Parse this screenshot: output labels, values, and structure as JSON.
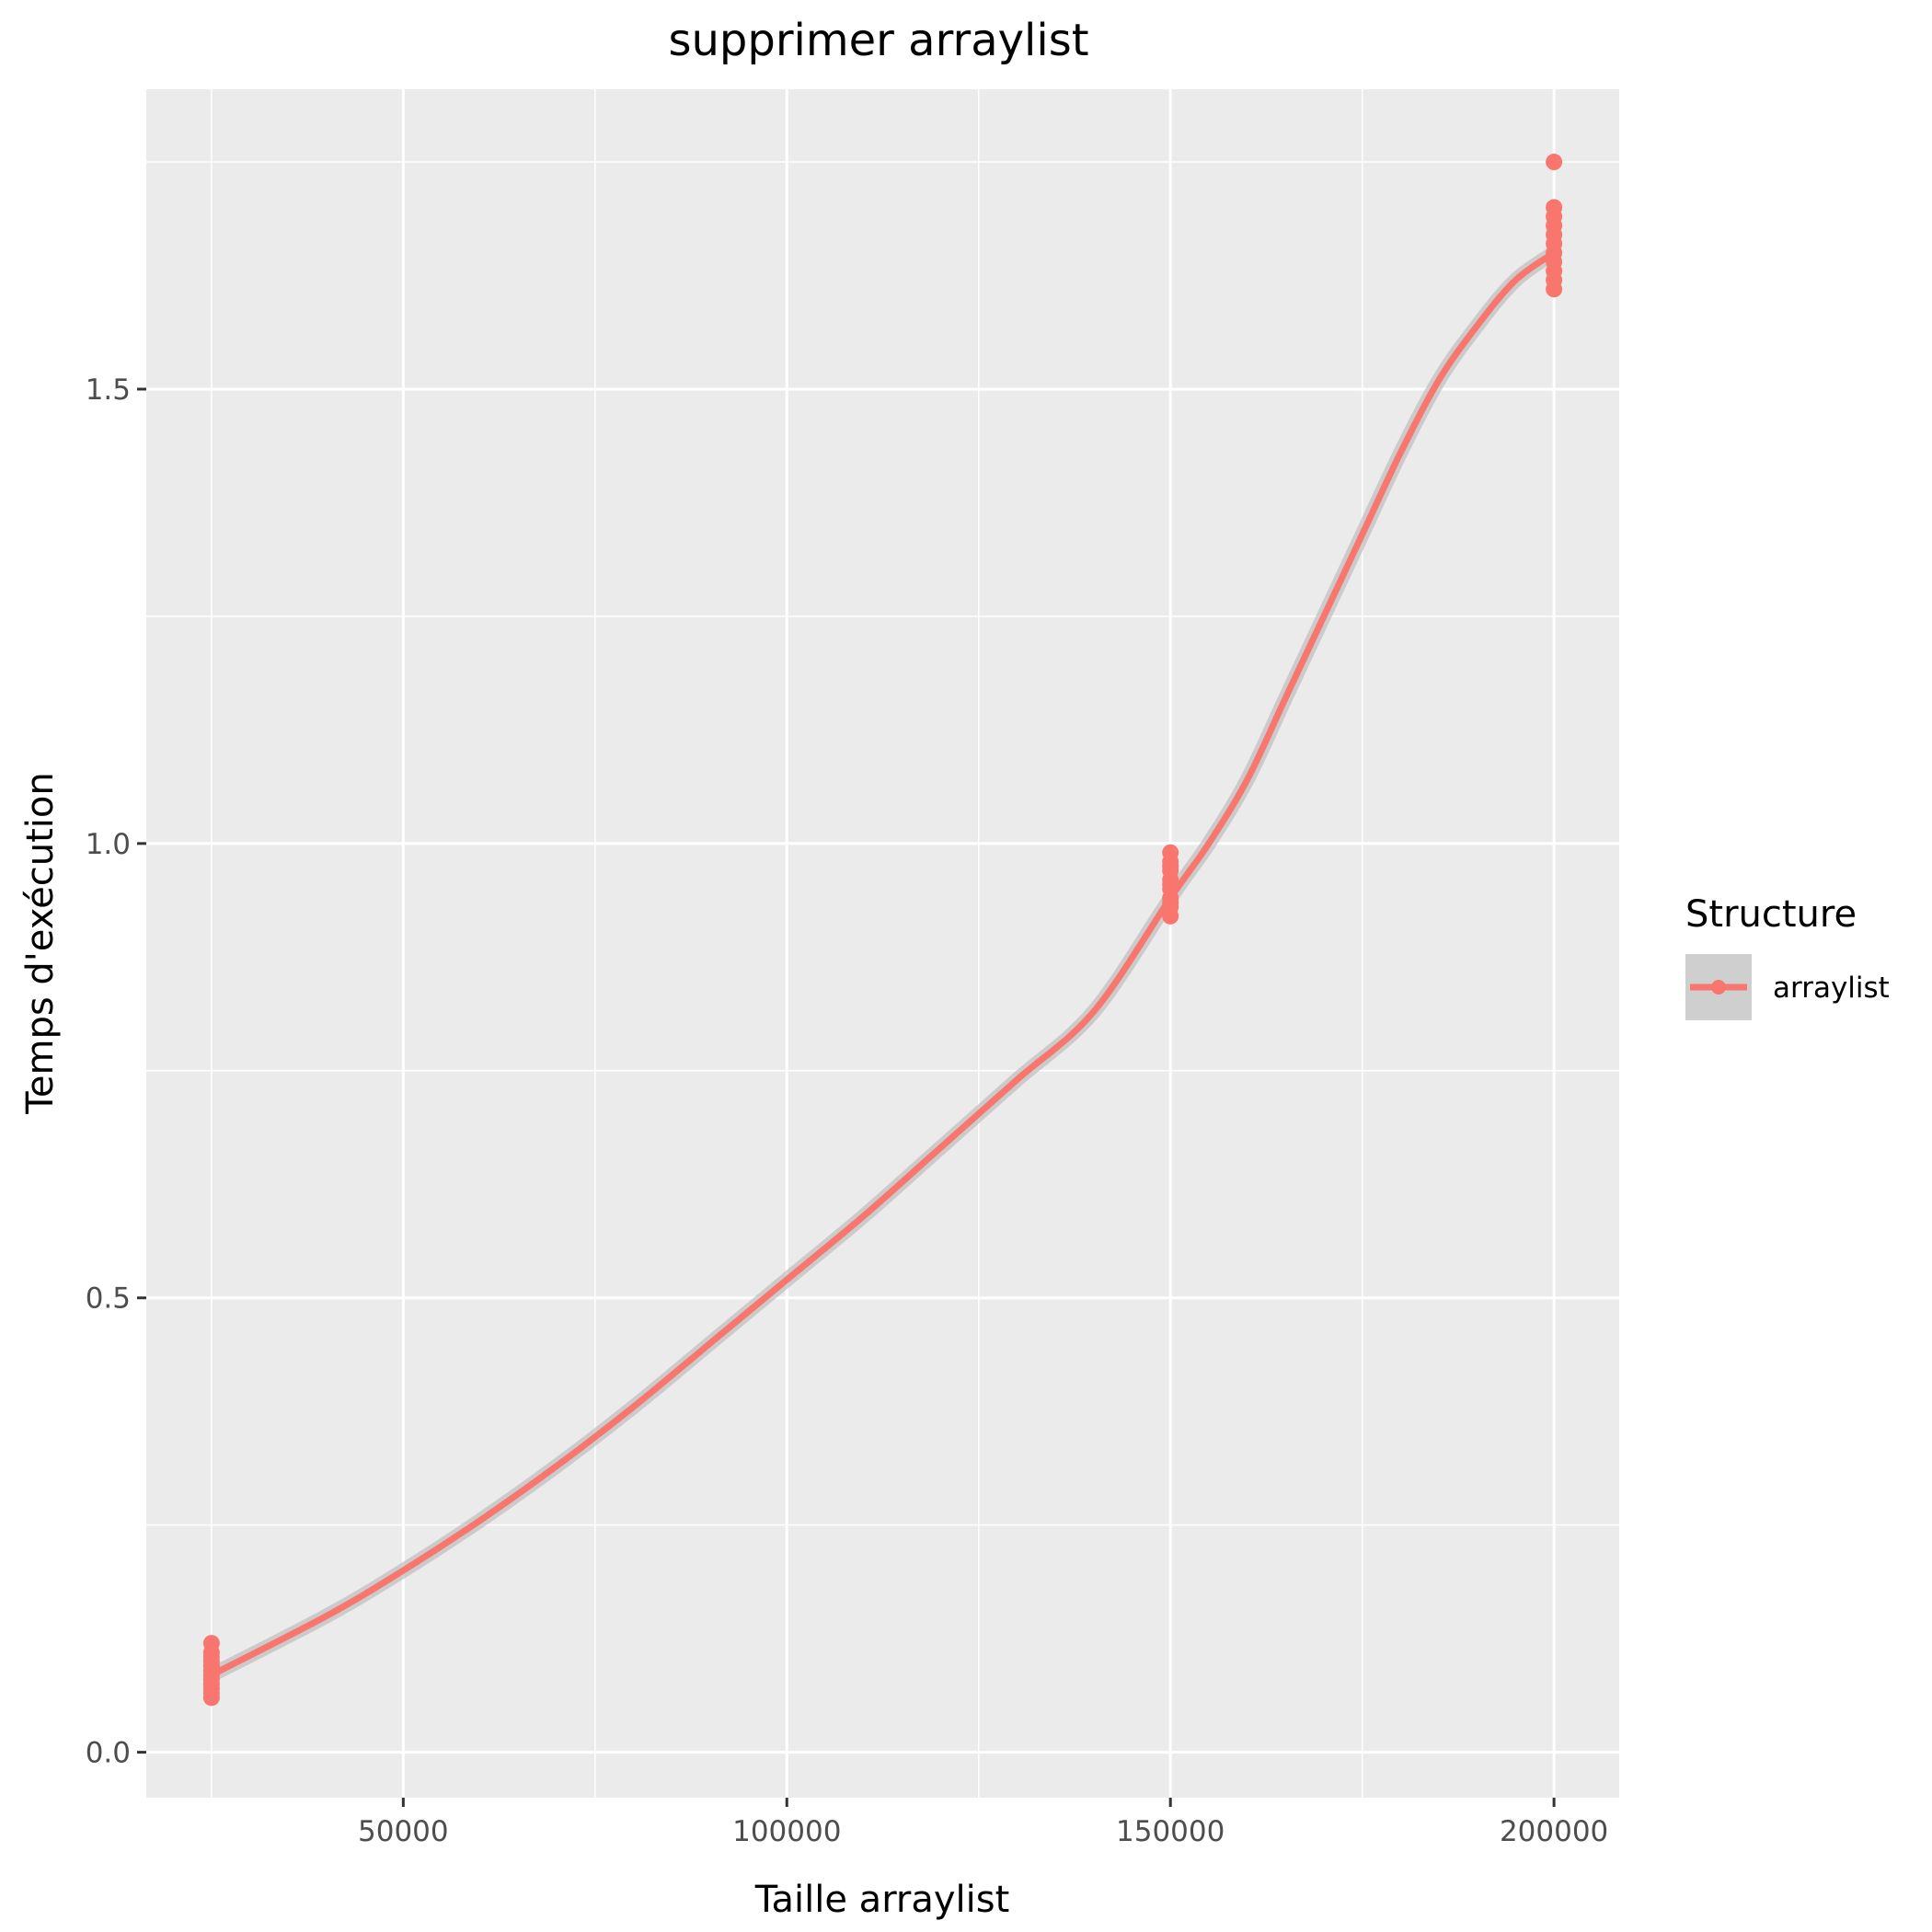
{
  "chart_data": {
    "type": "scatter",
    "title": "supprimer arraylist",
    "xlabel": "Taille arraylist",
    "ylabel": "Temps d'exécution",
    "xlim": [
      16500,
      208500
    ],
    "ylim": [
      -0.05,
      1.83
    ],
    "x_ticks": [
      50000,
      100000,
      150000,
      200000
    ],
    "x_tick_labels": [
      "50000",
      "100000",
      "150000",
      "200000"
    ],
    "y_ticks": [
      0.0,
      0.5,
      1.0,
      1.5
    ],
    "y_tick_labels": [
      "0.0",
      "0.5",
      "1.0",
      "1.5"
    ],
    "grid": true,
    "legend": {
      "title": "Structure",
      "placement": "right",
      "entries": [
        "arraylist"
      ]
    },
    "series": [
      {
        "name": "arraylist",
        "color": "#F8766D",
        "points": [
          {
            "x": 25000,
            "y": 0.06
          },
          {
            "x": 25000,
            "y": 0.065
          },
          {
            "x": 25000,
            "y": 0.07
          },
          {
            "x": 25000,
            "y": 0.075
          },
          {
            "x": 25000,
            "y": 0.08
          },
          {
            "x": 25000,
            "y": 0.085
          },
          {
            "x": 25000,
            "y": 0.09
          },
          {
            "x": 25000,
            "y": 0.095
          },
          {
            "x": 25000,
            "y": 0.1
          },
          {
            "x": 25000,
            "y": 0.105
          },
          {
            "x": 25000,
            "y": 0.11
          },
          {
            "x": 25000,
            "y": 0.12
          },
          {
            "x": 150000,
            "y": 0.92
          },
          {
            "x": 150000,
            "y": 0.93
          },
          {
            "x": 150000,
            "y": 0.935
          },
          {
            "x": 150000,
            "y": 0.94
          },
          {
            "x": 150000,
            "y": 0.95
          },
          {
            "x": 150000,
            "y": 0.955
          },
          {
            "x": 150000,
            "y": 0.96
          },
          {
            "x": 150000,
            "y": 0.97
          },
          {
            "x": 150000,
            "y": 0.975
          },
          {
            "x": 150000,
            "y": 0.98
          },
          {
            "x": 150000,
            "y": 0.99
          },
          {
            "x": 200000,
            "y": 1.61
          },
          {
            "x": 200000,
            "y": 1.62
          },
          {
            "x": 200000,
            "y": 1.63
          },
          {
            "x": 200000,
            "y": 1.64
          },
          {
            "x": 200000,
            "y": 1.65
          },
          {
            "x": 200000,
            "y": 1.66
          },
          {
            "x": 200000,
            "y": 1.67
          },
          {
            "x": 200000,
            "y": 1.68
          },
          {
            "x": 200000,
            "y": 1.69
          },
          {
            "x": 200000,
            "y": 1.7
          },
          {
            "x": 200000,
            "y": 1.75
          }
        ],
        "smooth": {
          "x": [
            25000,
            40000,
            50000,
            60000,
            70000,
            80000,
            90000,
            100000,
            110000,
            120000,
            130000,
            140000,
            150000,
            155000,
            160000,
            165000,
            170000,
            175000,
            180000,
            185000,
            190000,
            195000,
            200000
          ],
          "y": [
            0.085,
            0.15,
            0.2,
            0.255,
            0.315,
            0.38,
            0.45,
            0.52,
            0.59,
            0.665,
            0.74,
            0.815,
            0.94,
            1.0,
            1.07,
            1.16,
            1.25,
            1.34,
            1.43,
            1.51,
            1.57,
            1.62,
            1.65
          ]
        }
      }
    ]
  }
}
